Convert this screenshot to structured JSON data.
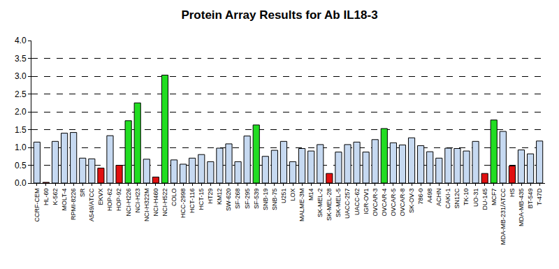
{
  "chart_data": {
    "type": "bar",
    "title": "Protein Array Results for Ab IL18-3",
    "categories": [
      "CCRF-CEM",
      "HL-60",
      "K-562",
      "MOLT-4",
      "RPMI-8226",
      "SR",
      "A549/ATCC",
      "EKVX",
      "HOP-62",
      "HOP-92",
      "NCI-H226",
      "NCI-H23",
      "NCI-H322M",
      "NCI-H460",
      "NCI-H522",
      "COLO",
      "HCC-2998",
      "HCT-116",
      "HCT-15",
      "HT29",
      "KM12",
      "SW-620",
      "SF-268",
      "SF-295",
      "SF-539",
      "SNB-19",
      "SNB-75",
      "U251",
      "LOX",
      "MALME-3M",
      "M14",
      "SK-MEL-2",
      "SK-MEL-28",
      "SK-MEL-5",
      "UACC-257",
      "UACC-62",
      "IGR-OV1",
      "OVCAR-3",
      "OVCAR-4",
      "OVCAR-5",
      "OVCAR-8",
      "SK-OV-3",
      "786-0",
      "A498",
      "ACHN",
      "CAKI-1",
      "SN12C",
      "TK-10",
      "UO-31",
      "DU-145",
      "MCF7",
      "MDA-MB-231/ATCC",
      "HS",
      "MDA-MB-435",
      "BT-549",
      "T-47D"
    ],
    "values": [
      1.15,
      0.02,
      1.17,
      1.4,
      1.42,
      0.7,
      0.68,
      0.42,
      1.33,
      0.5,
      1.75,
      2.25,
      0.67,
      0.17,
      3.03,
      0.65,
      0.53,
      0.7,
      0.8,
      0.6,
      0.98,
      1.1,
      0.6,
      1.32,
      1.63,
      0.75,
      0.92,
      1.17,
      0.6,
      0.97,
      0.9,
      1.08,
      0.27,
      0.87,
      1.08,
      1.15,
      0.87,
      1.22,
      1.53,
      1.13,
      1.07,
      1.27,
      1.05,
      0.88,
      0.7,
      0.98,
      0.97,
      0.9,
      1.17,
      0.27,
      1.77,
      1.45,
      0.48,
      0.93,
      0.82,
      1.18
    ],
    "colors": [
      "#c6d9f1",
      "#e01010",
      "#c6d9f1",
      "#c6d9f1",
      "#c6d9f1",
      "#c6d9f1",
      "#c6d9f1",
      "#e01010",
      "#c6d9f1",
      "#e01010",
      "#22dd22",
      "#22dd22",
      "#c6d9f1",
      "#e01010",
      "#22dd22",
      "#c6d9f1",
      "#c6d9f1",
      "#c6d9f1",
      "#c6d9f1",
      "#c6d9f1",
      "#c6d9f1",
      "#c6d9f1",
      "#c6d9f1",
      "#c6d9f1",
      "#22dd22",
      "#c6d9f1",
      "#c6d9f1",
      "#c6d9f1",
      "#c6d9f1",
      "#c6d9f1",
      "#c6d9f1",
      "#c6d9f1",
      "#e01010",
      "#c6d9f1",
      "#c6d9f1",
      "#c6d9f1",
      "#c6d9f1",
      "#c6d9f1",
      "#22dd22",
      "#c6d9f1",
      "#c6d9f1",
      "#c6d9f1",
      "#c6d9f1",
      "#c6d9f1",
      "#c6d9f1",
      "#c6d9f1",
      "#c6d9f1",
      "#c6d9f1",
      "#c6d9f1",
      "#e01010",
      "#22dd22",
      "#c6d9f1",
      "#e01010",
      "#c6d9f1",
      "#c6d9f1",
      "#c6d9f1"
    ],
    "ylim": [
      0,
      4
    ],
    "yticks": [
      {
        "value": 0,
        "label": "0.0"
      },
      {
        "value": 0.5,
        "label": "0.5"
      },
      {
        "value": 1,
        "label": "1.0"
      },
      {
        "value": 1.5,
        "label": "1.5"
      },
      {
        "value": 2,
        "label": "2.0"
      },
      {
        "value": 2.5,
        "label": "2.5"
      },
      {
        "value": 3,
        "label": "3.0"
      },
      {
        "value": 3.5,
        "label": "3.5"
      },
      {
        "value": 4,
        "label": "4.0"
      }
    ],
    "grid": true
  }
}
